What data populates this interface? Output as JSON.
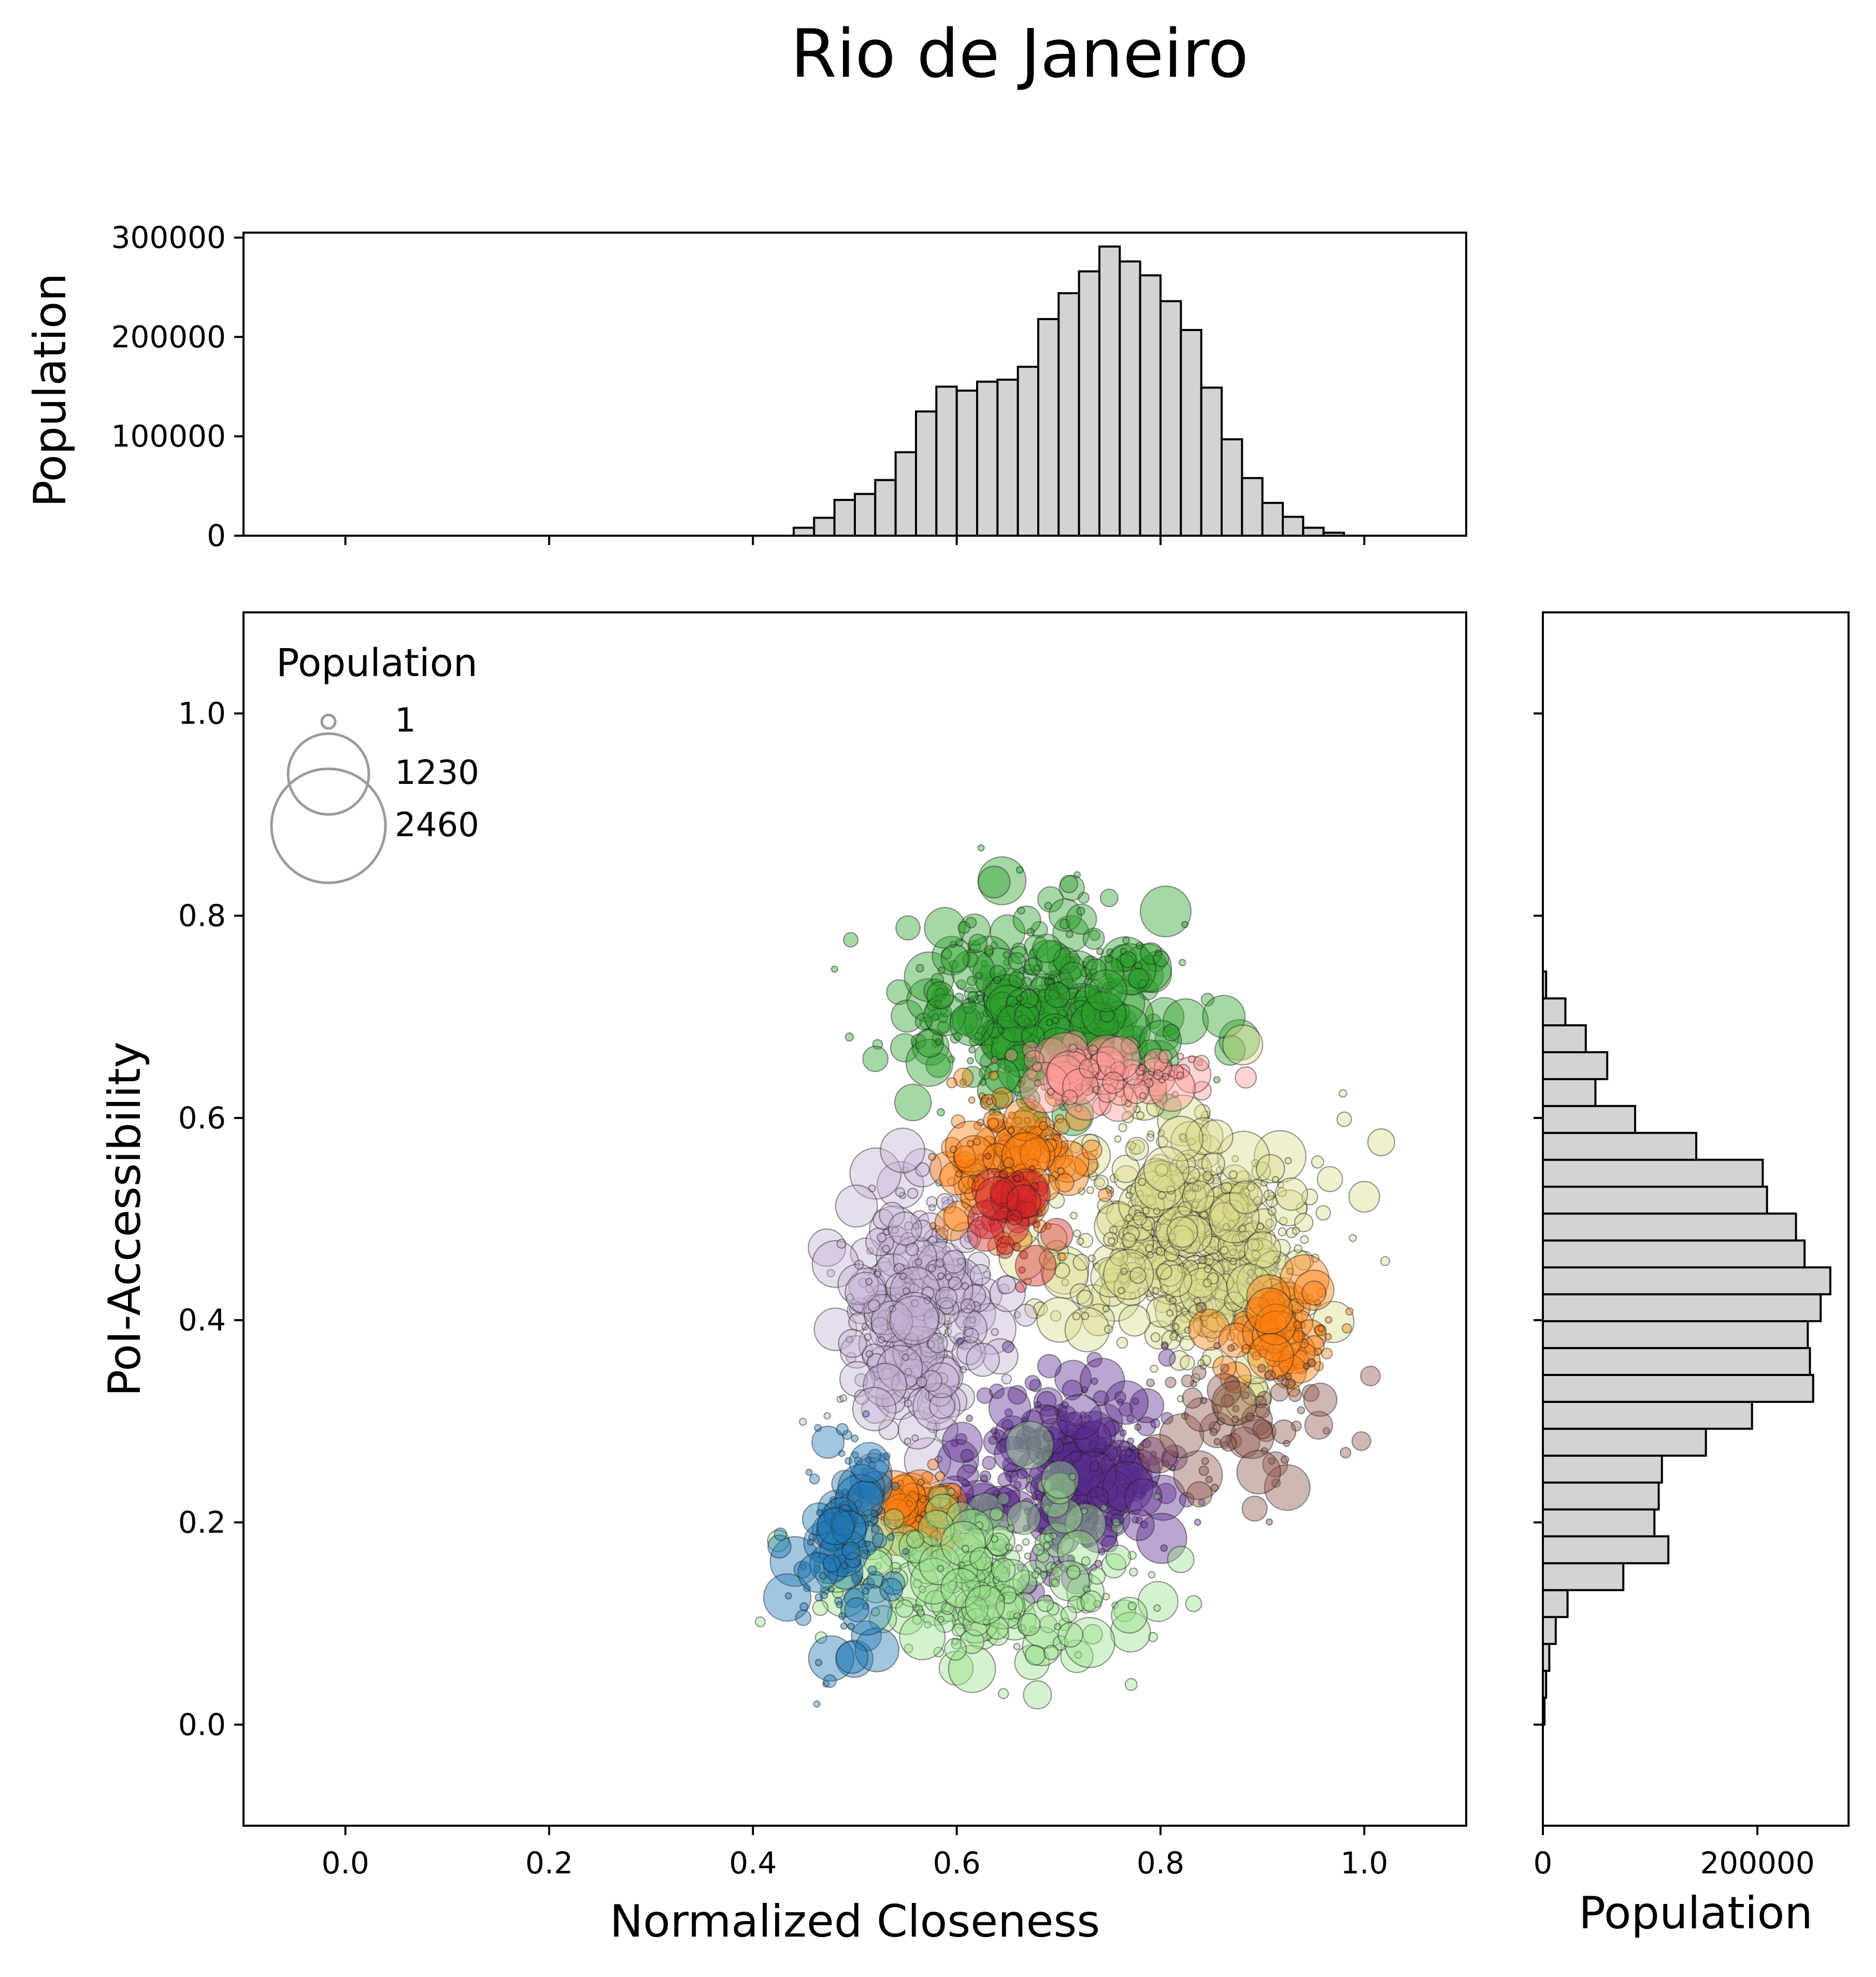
{
  "chart_data": [
    {
      "type": "scatter",
      "title": "Rio de Janeiro",
      "xlabel": "Normalized Closeness",
      "ylabel": "PoI-Accessibility",
      "xlim": [
        -0.1,
        1.1
      ],
      "ylim": [
        -0.1,
        1.1
      ],
      "xticks": [
        "0.0",
        "0.2",
        "0.4",
        "0.6",
        "0.8",
        "1.0"
      ],
      "yticks": [
        "0.0",
        "0.2",
        "0.4",
        "0.6",
        "0.8",
        "1.0"
      ],
      "legend": {
        "title": "Population",
        "placement": "top-left",
        "entries": [
          {
            "label": "1",
            "value": 1
          },
          {
            "label": "1230",
            "value": 1230
          },
          {
            "label": "2460",
            "value": 2460
          }
        ]
      },
      "clusters": [
        {
          "color": "#2ca02c",
          "cx": 0.69,
          "cy": 0.71,
          "sx": 0.09,
          "sy": 0.06,
          "share": 0.17
        },
        {
          "color": "#dbdb8d",
          "cx": 0.83,
          "cy": 0.48,
          "sx": 0.08,
          "sy": 0.08,
          "share": 0.22
        },
        {
          "color": "#c5b0d5",
          "cx": 0.56,
          "cy": 0.41,
          "sx": 0.05,
          "sy": 0.08,
          "share": 0.13
        },
        {
          "color": "#5b2c8f",
          "cx": 0.71,
          "cy": 0.25,
          "sx": 0.07,
          "sy": 0.06,
          "share": 0.12
        },
        {
          "color": "#ff7f0e",
          "cx": 0.66,
          "cy": 0.56,
          "sx": 0.05,
          "sy": 0.05,
          "share": 0.06
        },
        {
          "color": "#ff7f0e",
          "cx": 0.92,
          "cy": 0.38,
          "sx": 0.03,
          "sy": 0.03,
          "share": 0.03
        },
        {
          "color": "#ff7f0e",
          "cx": 0.56,
          "cy": 0.21,
          "sx": 0.03,
          "sy": 0.02,
          "share": 0.03
        },
        {
          "color": "#98df8a",
          "cx": 0.64,
          "cy": 0.14,
          "sx": 0.1,
          "sy": 0.06,
          "share": 0.1
        },
        {
          "color": "#1f77b4",
          "cx": 0.49,
          "cy": 0.18,
          "sx": 0.03,
          "sy": 0.07,
          "share": 0.05
        },
        {
          "color": "#ff9896",
          "cx": 0.75,
          "cy": 0.64,
          "sx": 0.06,
          "sy": 0.02,
          "share": 0.04
        },
        {
          "color": "#d62728",
          "cx": 0.66,
          "cy": 0.51,
          "sx": 0.02,
          "sy": 0.03,
          "share": 0.02
        },
        {
          "color": "#8c564b",
          "cx": 0.88,
          "cy": 0.3,
          "sx": 0.06,
          "sy": 0.05,
          "share": 0.03
        }
      ]
    },
    {
      "type": "bar",
      "orientation": "vertical",
      "ylabel": "Population",
      "ylim": [
        0,
        305000
      ],
      "yticks": [
        "0",
        "100000",
        "200000",
        "300000"
      ],
      "bin_width": 0.02,
      "bin_start": 0.44,
      "values": [
        8000,
        18000,
        36000,
        42000,
        56000,
        84000,
        125000,
        150000,
        146000,
        155000,
        157000,
        170000,
        218000,
        244000,
        266000,
        291000,
        276000,
        262000,
        236000,
        207000,
        149000,
        97000,
        58000,
        33000,
        19000,
        8000,
        3000
      ]
    },
    {
      "type": "bar",
      "orientation": "horizontal",
      "xlabel": "Population",
      "xlim": [
        0,
        285000
      ],
      "xticks": [
        "0",
        "200000"
      ],
      "bin_width": 0.0266,
      "bin_start": 0.0,
      "values": [
        1500,
        3000,
        6000,
        12000,
        23000,
        75000,
        117000,
        104000,
        108000,
        111000,
        152000,
        195000,
        252000,
        249000,
        247000,
        259000,
        268000,
        244000,
        236000,
        209000,
        205000,
        143000,
        86000,
        49000,
        60000,
        40000,
        21000,
        3000
      ]
    }
  ]
}
